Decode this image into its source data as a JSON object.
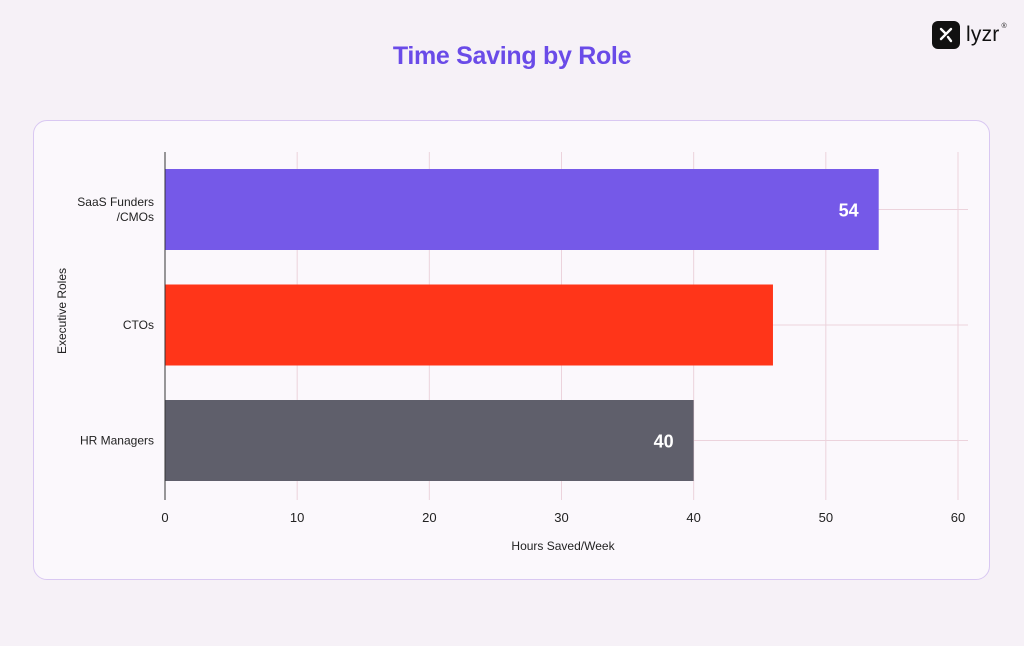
{
  "brand": {
    "name": "lyzr",
    "tm": "®"
  },
  "chart_data": {
    "type": "bar",
    "orientation": "horizontal",
    "title": "Time Saving by Role",
    "xlabel": "Hours Saved/Week",
    "ylabel": "Executive Roles",
    "categories": [
      "SaaS Funders\n/CMOs",
      "CTOs",
      "HR Managers"
    ],
    "values": [
      54,
      46,
      40
    ],
    "data_labels": [
      "54",
      "",
      "40"
    ],
    "colors": [
      "#7559e8",
      "#ff3519",
      "#5f5f6b"
    ],
    "xlim": [
      0,
      60
    ],
    "xticks": [
      0,
      10,
      20,
      30,
      40,
      50,
      60
    ],
    "grid": true
  }
}
